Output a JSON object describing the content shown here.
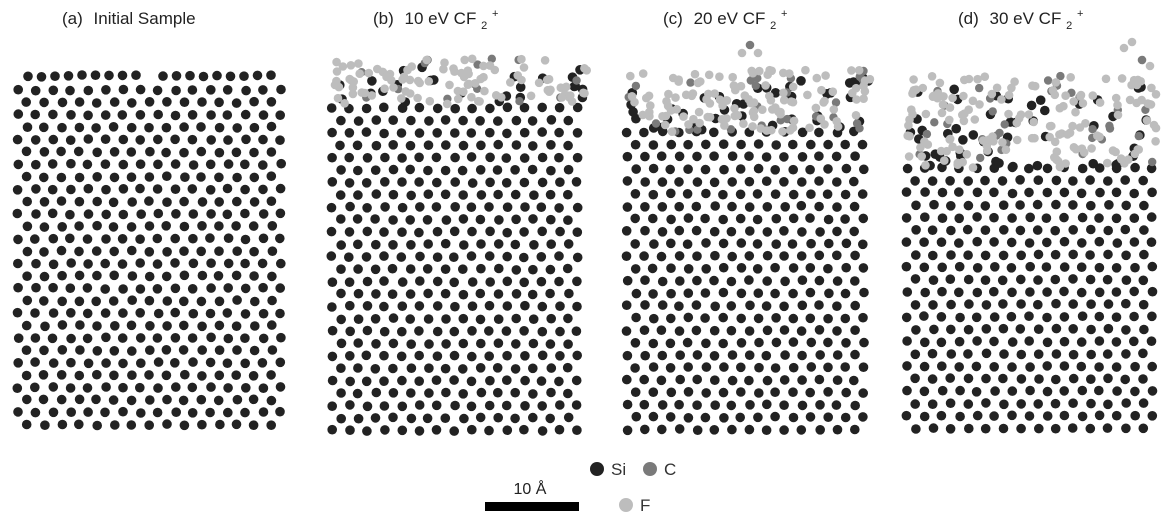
{
  "figure": {
    "panels": [
      {
        "id": "a",
        "label": "(a)",
        "title": "Initial Sample",
        "ion": "",
        "ion_sub": "",
        "ion_sup": ""
      },
      {
        "id": "b",
        "label": "(b)",
        "title": "10 eV ",
        "ion": "CF",
        "ion_sub": "2",
        "ion_sup": "+"
      },
      {
        "id": "c",
        "label": "(c)",
        "title": "20 eV ",
        "ion": "CF",
        "ion_sub": "2",
        "ion_sup": "+"
      },
      {
        "id": "d",
        "label": "(d)",
        "title": "30 eV ",
        "ion": "CF",
        "ion_sub": "2",
        "ion_sup": "+"
      }
    ],
    "legend": {
      "items": [
        {
          "label": "Si",
          "color": "#222222"
        },
        {
          "label": "C",
          "color": "#7a7a7a"
        },
        {
          "label": "F",
          "color": "#bdbdbd"
        }
      ]
    },
    "scale_bar": {
      "label": "10 Å"
    },
    "colors": {
      "si": "#222222",
      "c": "#7a7a7a",
      "f": "#bdbdbd"
    }
  }
}
